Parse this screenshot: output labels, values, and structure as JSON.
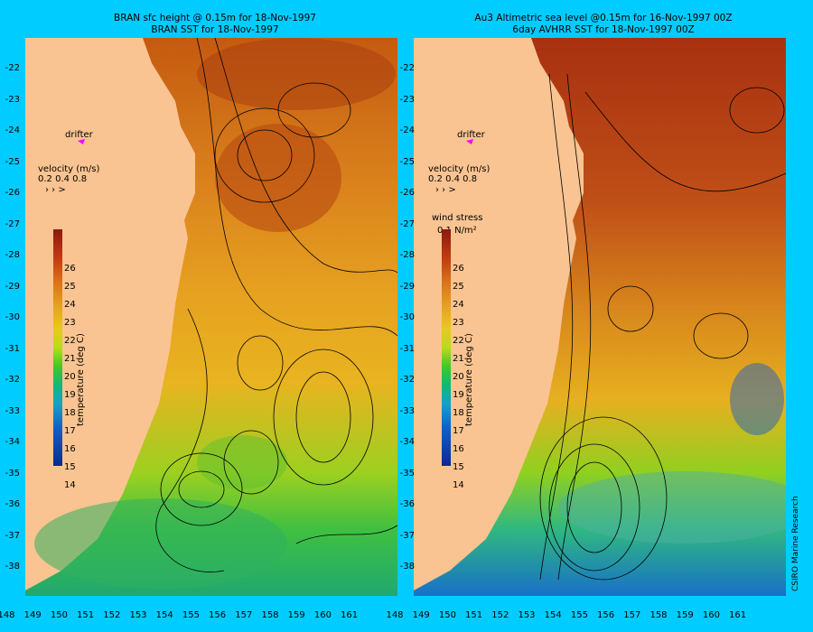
{
  "left_map": {
    "title_line1": "BRAN sfc height @ 0.15m for 18-Nov-1997",
    "title_line2": "BRAN SST for 18-Nov-1997",
    "drifter_label": "drifter",
    "velocity_label": "velocity (m/s)",
    "velocity_scale": "0.2 0.4 0.8"
  },
  "right_map": {
    "title_line1": "Au3 Altimetric sea level  @0.15m  for 16-Nov-1997 00Z",
    "title_line2": "6day AVHRR SST for 18-Nov-1997 00Z",
    "drifter_label": "drifter",
    "velocity_label": "velocity (m/s)",
    "velocity_scale": "0.2 0.4 0.8",
    "wind_label": "wind stress",
    "wind_value": "0.1 N/m²"
  },
  "colorbar": {
    "title": "temperature (deg C)",
    "ticks": [
      "26",
      "25",
      "24",
      "23",
      "22",
      "21",
      "20",
      "19",
      "18",
      "17",
      "16",
      "15",
      "14"
    ]
  },
  "lat_ticks": [
    "-22",
    "-23",
    "-24",
    "-25",
    "-26",
    "-27",
    "-28",
    "-29",
    "-30",
    "-31",
    "-32",
    "-33",
    "-34",
    "-35",
    "-36",
    "-37",
    "-38"
  ],
  "lon_ticks": [
    "148",
    "149",
    "150",
    "151",
    "152",
    "153",
    "154",
    "155",
    "156",
    "157",
    "158",
    "159",
    "160",
    "161"
  ],
  "credit": "CSIRO Marine Research",
  "colors": {
    "background": "#00ccff",
    "land": "#f9c491",
    "drifter": "#ff00ff"
  }
}
